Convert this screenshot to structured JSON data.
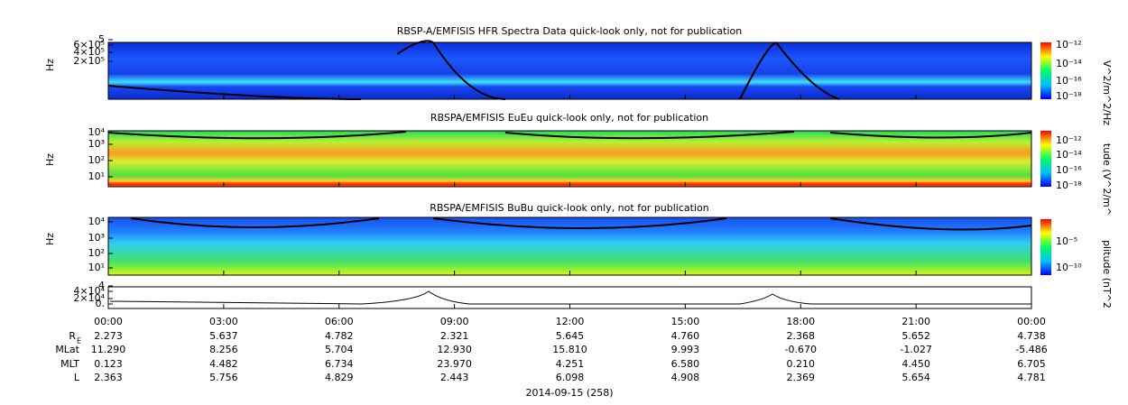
{
  "panels": [
    {
      "title": "RBSP-A/EMFISIS  HFR Spectra Data quick-look only, not for publication",
      "y_label": "Hz",
      "yticks": [
        "5",
        "6×10⁵",
        "4×10⁵",
        "2×10⁵"
      ],
      "colorbar_label": "V^2/m^2/Hz",
      "colorbar_ticks": [
        "10⁻¹²",
        "10⁻¹⁴",
        "10⁻¹⁶",
        "10⁻¹⁸"
      ]
    },
    {
      "title": "RBSPA/EMFISIS  EuEu quick-look only, not for publication",
      "y_label": "Hz",
      "yticks": [
        "10⁴",
        "10³",
        "10²",
        "10¹"
      ],
      "colorbar_label": "tude (V^2/m^",
      "colorbar_ticks": [
        "10⁻¹²",
        "10⁻¹⁴",
        "10⁻¹⁶",
        "10⁻¹⁸"
      ]
    },
    {
      "title": "RBSPA/EMFISIS  BuBu quick-look only, not for publication",
      "y_label": "Hz",
      "yticks": [
        "10⁴",
        "10³",
        "10²",
        "10¹"
      ],
      "colorbar_label": "plitude (nT^2",
      "colorbar_ticks": [
        "10⁻⁵",
        "10⁻¹⁰"
      ]
    },
    {
      "yticks": [
        "4",
        "4×10⁴",
        "2×10⁴",
        "0."
      ]
    }
  ],
  "x_ticks": [
    "00:00",
    "03:00",
    "06:00",
    "09:00",
    "12:00",
    "15:00",
    "18:00",
    "21:00",
    "00:00"
  ],
  "ephemeris": [
    {
      "label": "R",
      "sub": "E",
      "values": [
        "2.273",
        "5.637",
        "4.782",
        "2.321",
        "5.645",
        "4.760",
        "2.368",
        "5.652",
        "4.738"
      ]
    },
    {
      "label": "MLat",
      "values": [
        "11.290",
        "8.256",
        "5.704",
        "12.930",
        "15.810",
        "9.993",
        "-0.670",
        "-1.027",
        "-5.486"
      ]
    },
    {
      "label": "MLT",
      "values": [
        "0.123",
        "4.482",
        "6.734",
        "23.970",
        "4.251",
        "6.580",
        "0.210",
        "4.450",
        "6.705"
      ]
    },
    {
      "label": "L",
      "values": [
        "2.363",
        "5.756",
        "4.829",
        "2.443",
        "6.098",
        "4.908",
        "2.369",
        "5.654",
        "4.781"
      ]
    }
  ],
  "date": "2014-09-15 (258)"
}
